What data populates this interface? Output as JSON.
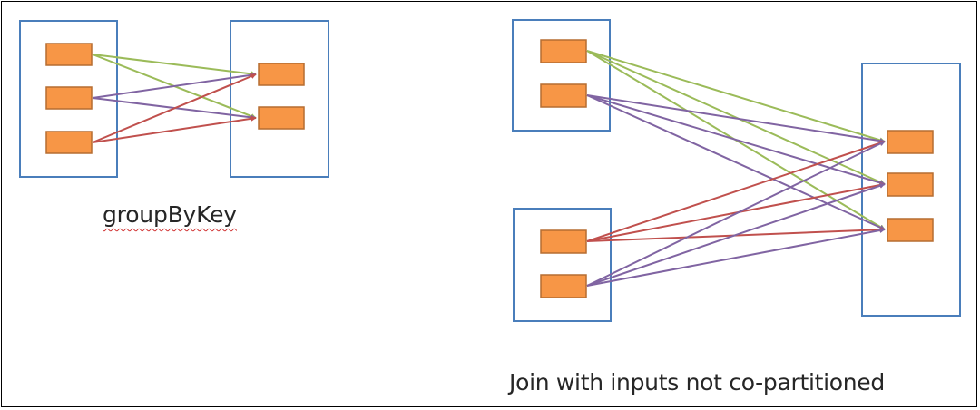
{
  "colors": {
    "frame": "#000000",
    "container_stroke": "#4a7ebb",
    "partition_fill": "#f79646",
    "partition_stroke": "#b66d31",
    "green_arrow": "#9bbb59",
    "purple_arrow": "#8064a2",
    "red_arrow": "#c0504d",
    "caption_text": "#262626"
  },
  "diagrams": {
    "group_by_key": {
      "caption": "groupByKey",
      "sources": 3,
      "targets": 2
    },
    "join": {
      "caption": "Join with inputs not co-partitioned",
      "sources_top": 2,
      "sources_bottom": 2,
      "targets": 3
    }
  }
}
